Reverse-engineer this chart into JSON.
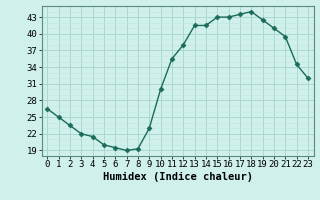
{
  "x": [
    0,
    1,
    2,
    3,
    4,
    5,
    6,
    7,
    8,
    9,
    10,
    11,
    12,
    13,
    14,
    15,
    16,
    17,
    18,
    19,
    20,
    21,
    22,
    23
  ],
  "y": [
    26.5,
    25.0,
    23.5,
    22.0,
    21.5,
    20.0,
    19.5,
    19.0,
    19.3,
    23.0,
    30.0,
    35.5,
    38.0,
    41.5,
    41.5,
    43.0,
    43.0,
    43.5,
    44.0,
    42.5,
    41.0,
    39.5,
    34.5,
    32.0
  ],
  "line_color": "#1a6b5a",
  "marker": "D",
  "marker_size": 2.5,
  "bg_color": "#cff0eb",
  "grid_major_color": "#aad8d0",
  "grid_minor_color": "#c0e8e0",
  "xlabel": "Humidex (Indice chaleur)",
  "xlim": [
    -0.5,
    23.5
  ],
  "ylim": [
    18,
    45
  ],
  "yticks": [
    19,
    22,
    25,
    28,
    31,
    34,
    37,
    40,
    43
  ],
  "xtick_labels": [
    "0",
    "1",
    "2",
    "3",
    "4",
    "5",
    "6",
    "7",
    "8",
    "9",
    "10",
    "11",
    "12",
    "13",
    "14",
    "15",
    "16",
    "17",
    "18",
    "19",
    "20",
    "21",
    "22",
    "23"
  ],
  "tick_fontsize": 6.5,
  "label_fontsize": 7.5
}
